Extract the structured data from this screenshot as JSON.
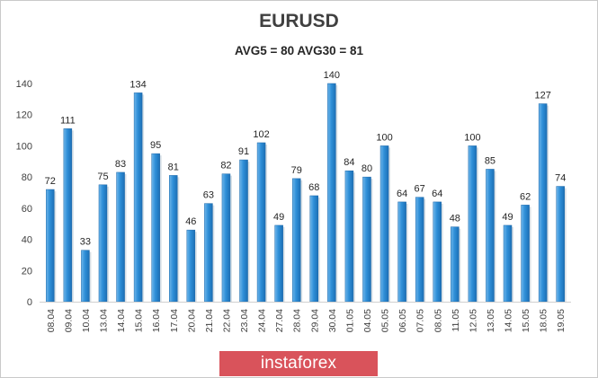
{
  "chart_data": {
    "type": "bar",
    "title": "EURUSD",
    "subtitle": "AVG5 = 80 AVG30 = 81",
    "xlabel": "",
    "ylabel": "",
    "ylim": [
      0,
      140
    ],
    "yticks": [
      0,
      20,
      40,
      60,
      80,
      100,
      120,
      140
    ],
    "grid": false,
    "categories": [
      "08.04",
      "09.04",
      "10.04",
      "13.04",
      "14.04",
      "15.04",
      "16.04",
      "17.04",
      "20.04",
      "21.04",
      "22.04",
      "23.04",
      "24.04",
      "27.04",
      "28.04",
      "29.04",
      "30.04",
      "01.05",
      "04.05",
      "05.05",
      "06.05",
      "07.05",
      "08.05",
      "11.05",
      "12.05",
      "13.05",
      "14.05",
      "15.05",
      "18.05",
      "19.05"
    ],
    "values": [
      72,
      111,
      33,
      75,
      83,
      134,
      95,
      81,
      46,
      63,
      82,
      91,
      102,
      49,
      79,
      68,
      140,
      84,
      80,
      100,
      64,
      67,
      64,
      48,
      100,
      85,
      49,
      62,
      127,
      74
    ],
    "bar_color": "#2f8fd8"
  },
  "watermark": {
    "text": "instaforex",
    "color": "#d9535b"
  }
}
